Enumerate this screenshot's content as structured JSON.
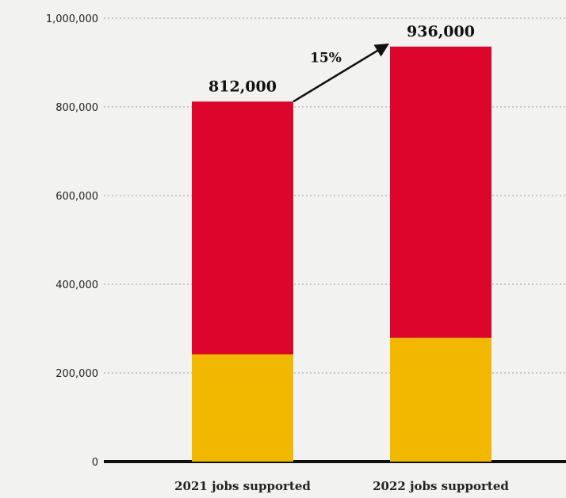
{
  "chart_data": {
    "type": "bar",
    "stacked": true,
    "categories": [
      "2021 jobs supported",
      "2022 jobs supported"
    ],
    "series": [
      {
        "values": [
          242000,
          279000
        ],
        "color": "#f2b800"
      },
      {
        "values": [
          570000,
          657000
        ],
        "color": "#dd052b"
      }
    ],
    "totals": [
      812000,
      936000
    ],
    "total_labels": [
      "812,000",
      "936,000"
    ],
    "annotation": {
      "text": "15%",
      "from_bar": 0,
      "to_bar": 1
    },
    "ylim": [
      0,
      1000000
    ],
    "yticks": [
      0,
      200000,
      400000,
      600000,
      800000,
      1000000
    ],
    "ytick_labels": [
      "0",
      "200,000",
      "400,000",
      "600,000",
      "800,000",
      "1,000,000"
    ],
    "grid": true,
    "title": "",
    "xlabel": "",
    "ylabel": ""
  }
}
